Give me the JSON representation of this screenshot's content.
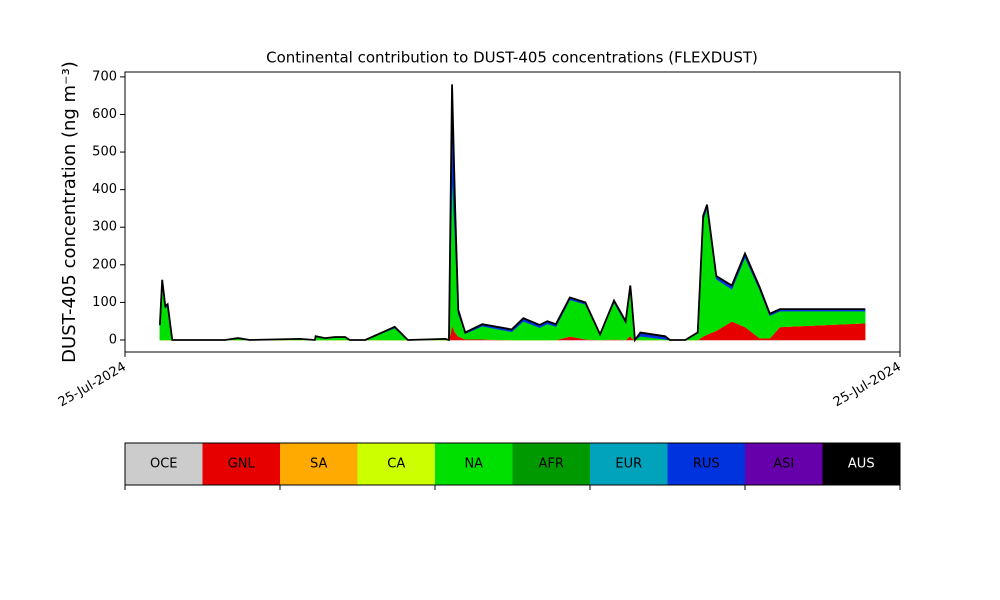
{
  "chart_data": {
    "type": "stacked_area",
    "title": "Continental contribution to DUST-405 concentrations (FLEXDUST)",
    "y_label": "DUST-405 concentration (ng m⁻³)",
    "xlim": [
      0,
      100
    ],
    "xticks": [
      {
        "value": 0,
        "label": "25-Jul-2024"
      },
      {
        "value": 100,
        "label": "25-Jul-2024"
      }
    ],
    "ylim": [
      -32,
      713
    ],
    "yticks": [
      0,
      100,
      200,
      300,
      400,
      500,
      600,
      700
    ],
    "x": [
      4.5,
      4.8,
      5.2,
      5.5,
      6.1,
      12.9,
      14.6,
      16.1,
      22.6,
      24.5,
      24.6,
      25.8,
      27.1,
      28.4,
      29,
      31,
      34.8,
      36.5,
      41.3,
      41.8,
      42.2,
      42.6,
      43,
      43.9,
      46.1,
      49.9,
      51.4,
      53.5,
      54.5,
      55.6,
      57.4,
      59.4,
      61.3,
      63.1,
      64.6,
      65.2,
      65.4,
      65.8,
      66.5,
      69.7,
      70.3,
      72.3,
      73.9,
      74.6,
      75.1,
      76.3,
      78.3,
      80,
      81.9,
      83.2,
      84.5,
      95.5
    ],
    "series": [
      {
        "name": "OCE",
        "color": "#cccccc",
        "values": [
          0,
          0,
          0,
          0,
          0,
          0,
          0,
          0,
          0,
          0,
          0,
          0,
          0,
          0,
          0,
          0,
          0,
          0,
          0,
          0,
          0,
          0,
          0,
          0,
          0,
          0,
          0,
          0,
          0,
          0,
          0,
          0,
          0,
          0,
          0,
          0,
          0,
          0,
          0,
          0,
          0,
          0,
          0,
          0,
          0,
          0,
          0,
          0,
          0,
          0,
          0,
          0
        ]
      },
      {
        "name": "GNL",
        "color": "#e60000",
        "values": [
          0,
          0,
          0,
          0,
          0,
          0,
          0,
          0,
          0,
          0,
          0,
          0,
          0,
          0,
          0,
          0,
          0,
          0,
          0,
          0,
          40,
          20,
          10,
          2,
          2,
          0,
          0,
          0,
          0,
          0,
          10,
          2,
          0,
          2,
          0,
          12,
          5,
          0,
          0,
          0,
          0,
          0,
          0,
          10,
          15,
          25,
          50,
          35,
          5,
          5,
          35,
          45
        ]
      },
      {
        "name": "SA",
        "color": "#ffaa00",
        "values": [
          0,
          0,
          0,
          0,
          0,
          0,
          0,
          0,
          0,
          0,
          0,
          0,
          0,
          0,
          0,
          0,
          0,
          0,
          0,
          0,
          0,
          0,
          0,
          0,
          0,
          0,
          0,
          0,
          0,
          0,
          0,
          0,
          0,
          0,
          0,
          0,
          0,
          0,
          0,
          0,
          0,
          0,
          0,
          0,
          0,
          0,
          0,
          0,
          0,
          0,
          0,
          0
        ]
      },
      {
        "name": "CA",
        "color": "#ccff00",
        "values": [
          0,
          0,
          0,
          0,
          0,
          0,
          0,
          0,
          0,
          0,
          0,
          0,
          0,
          0,
          0,
          0,
          0,
          0,
          0,
          0,
          0,
          0,
          0,
          0,
          0,
          0,
          0,
          0,
          0,
          0,
          0,
          0,
          0,
          0,
          0,
          0,
          0,
          0,
          0,
          0,
          0,
          0,
          0,
          0,
          0,
          0,
          0,
          0,
          0,
          0,
          0,
          0
        ]
      },
      {
        "name": "NA",
        "color": "#00e000",
        "values": [
          38,
          150,
          85,
          90,
          0,
          0,
          4,
          0,
          3,
          0,
          9,
          4,
          7,
          7,
          0,
          0,
          32,
          0,
          3,
          0,
          400,
          250,
          60,
          15,
          35,
          22,
          50,
          33,
          43,
          36,
          97,
          93,
          14,
          98,
          45,
          125,
          90,
          0,
          10,
          2,
          0,
          0,
          18,
          310,
          335,
          137,
          85,
          185,
          128,
          60,
          42,
          32
        ]
      },
      {
        "name": "AFR",
        "color": "#009900",
        "values": [
          0,
          0,
          0,
          0,
          0,
          0,
          0,
          0,
          0,
          0,
          0,
          0,
          0,
          0,
          0,
          0,
          0,
          0,
          0,
          0,
          0,
          0,
          0,
          0,
          0,
          0,
          0,
          0,
          0,
          0,
          0,
          0,
          0,
          0,
          0,
          0,
          0,
          0,
          0,
          0,
          0,
          0,
          0,
          0,
          0,
          0,
          0,
          0,
          0,
          0,
          0,
          0
        ]
      },
      {
        "name": "EUR",
        "color": "#00a3bb",
        "values": [
          0,
          0,
          0,
          0,
          0,
          0,
          0,
          0,
          0,
          0,
          0,
          0,
          0,
          0,
          0,
          0,
          0,
          0,
          0,
          0,
          0,
          0,
          0,
          0,
          0,
          0,
          0,
          0,
          0,
          0,
          0,
          0,
          0,
          0,
          0,
          0,
          0,
          0,
          0,
          0,
          0,
          0,
          0,
          0,
          0,
          0,
          0,
          0,
          0,
          0,
          0,
          0
        ]
      },
      {
        "name": "RUS",
        "color": "#0033dd",
        "values": [
          2,
          8,
          4,
          4,
          0,
          0,
          1,
          0,
          0,
          0,
          1,
          1,
          1,
          1,
          0,
          0,
          3,
          0,
          0,
          0,
          180,
          70,
          8,
          3,
          5,
          6,
          8,
          7,
          7,
          6,
          6,
          5,
          1,
          5,
          5,
          8,
          5,
          0,
          8,
          6,
          0,
          0,
          2,
          10,
          10,
          8,
          10,
          10,
          7,
          5,
          5,
          5
        ]
      },
      {
        "name": "ASI",
        "color": "#6600aa",
        "values": [
          0,
          0,
          0,
          0,
          0,
          0,
          0,
          0,
          0,
          0,
          0,
          0,
          0,
          0,
          0,
          0,
          0,
          0,
          0,
          0,
          0,
          0,
          0,
          0,
          0,
          0,
          0,
          0,
          0,
          0,
          0,
          0,
          0,
          0,
          0,
          0,
          0,
          0,
          0,
          0,
          0,
          0,
          0,
          0,
          0,
          0,
          0,
          0,
          0,
          0,
          0,
          0
        ]
      },
      {
        "name": "AUS",
        "color": "#000000",
        "values": [
          0,
          2,
          1,
          1,
          0,
          0,
          0,
          0,
          0,
          0,
          0,
          0,
          0,
          0,
          0,
          0,
          0,
          0,
          0,
          0,
          60,
          10,
          2,
          0,
          0,
          0,
          0,
          0,
          0,
          0,
          0,
          0,
          0,
          0,
          0,
          0,
          0,
          0,
          2,
          2,
          0,
          0,
          0,
          0,
          0,
          0,
          0,
          0,
          0,
          0,
          0,
          0
        ]
      }
    ]
  }
}
